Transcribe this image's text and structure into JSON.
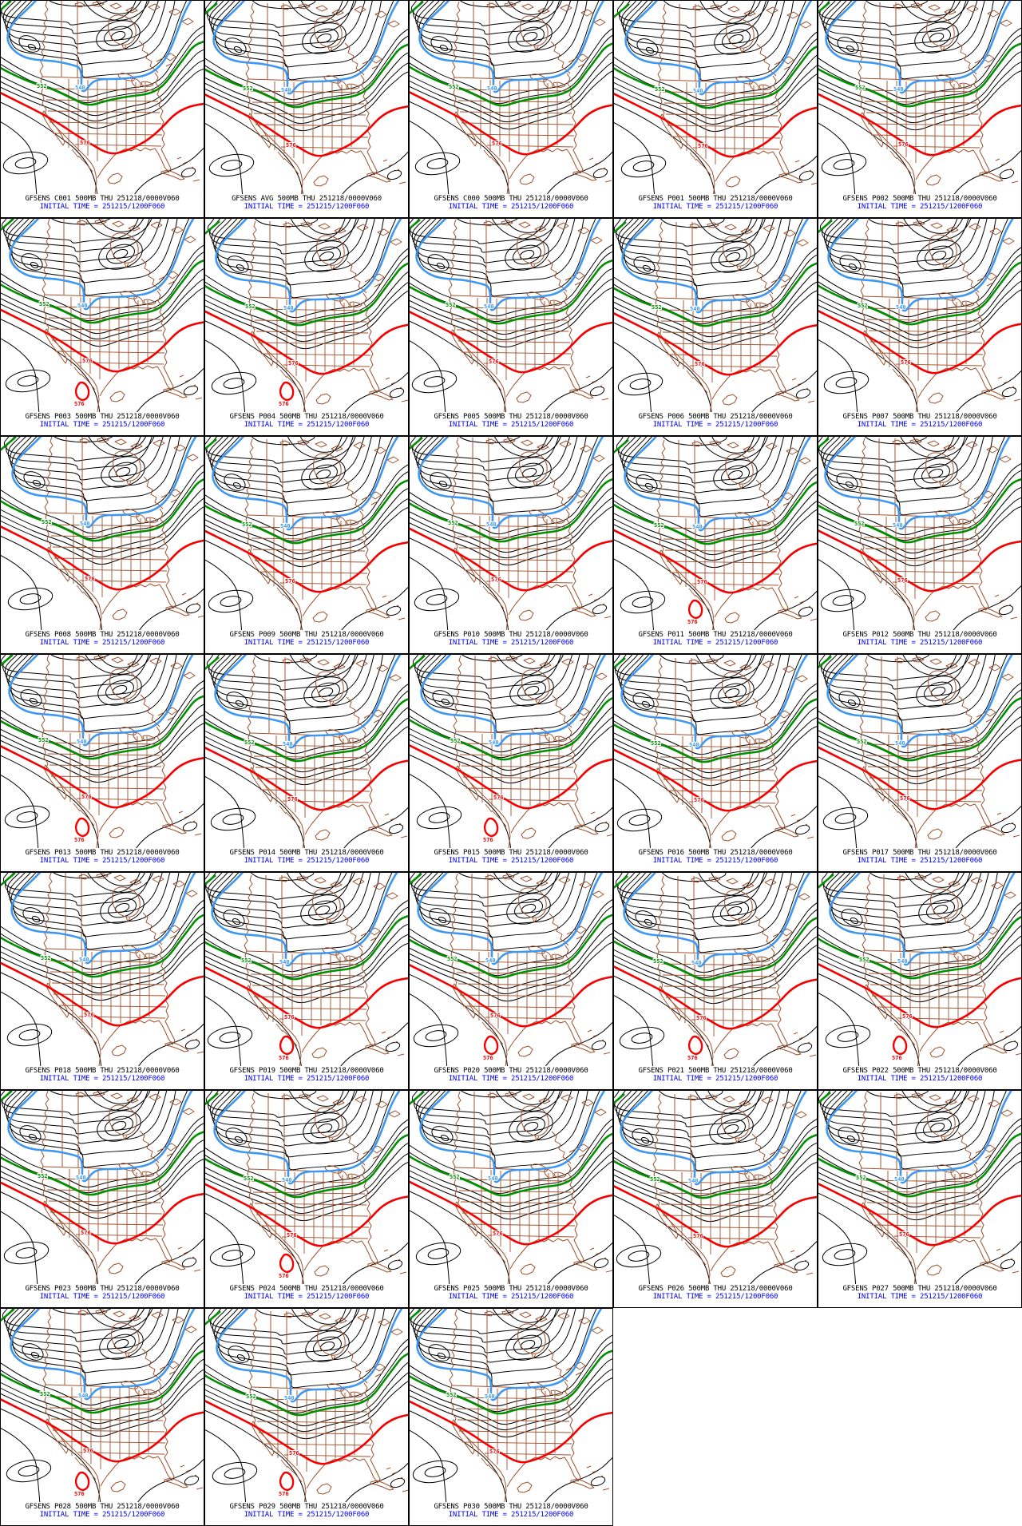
{
  "page": {
    "description": "GFS ensemble 500MB geopotential height forecast panels, 33 members",
    "background": "#ffffff",
    "grid": {
      "columns": 5,
      "rows": 7,
      "panel_count": 33
    }
  },
  "colors": {
    "contour_black": "#000000",
    "geography_brown": "#a0522d",
    "contour_540_blue": "#3e97f0",
    "contour_552_green": "#009000",
    "contour_576_red": "#f50000",
    "caption_black": "#000000",
    "caption_blue": "#0000ee"
  },
  "map": {
    "labels": {
      "h540": "540",
      "h552": "552",
      "h576": "576"
    }
  },
  "panels": [
    {
      "id": "C001",
      "title": "GFSENS C001 500MB THU 251218/0000V060",
      "initial_time": "INITIAL TIME = 251215/1200F060",
      "mexico_low": false
    },
    {
      "id": "AVG",
      "title": "GFSENS AVG 500MB THU 251218/0000V060",
      "initial_time": "INITIAL TIME = 251215/1200F060",
      "mexico_low": false
    },
    {
      "id": "C000",
      "title": "GFSENS C000 500MB THU 251218/0000V060",
      "initial_time": "INITIAL TIME = 251215/1200F060",
      "mexico_low": false
    },
    {
      "id": "P001",
      "title": "GFSENS P001 500MB THU 251218/0000V060",
      "initial_time": "INITIAL TIME = 251215/1200F060",
      "mexico_low": false
    },
    {
      "id": "P002",
      "title": "GFSENS P002 500MB THU 251218/0000V060",
      "initial_time": "INITIAL TIME = 251215/1200F060",
      "mexico_low": false
    },
    {
      "id": "P003",
      "title": "GFSENS P003 500MB THU 251218/0000V060",
      "initial_time": "INITIAL TIME = 251215/1200F060",
      "mexico_low": true
    },
    {
      "id": "P004",
      "title": "GFSENS P004 500MB THU 251218/0000V060",
      "initial_time": "INITIAL TIME = 251215/1200F060",
      "mexico_low": true
    },
    {
      "id": "P005",
      "title": "GFSENS P005 500MB THU 251218/0000V060",
      "initial_time": "INITIAL TIME = 251215/1200F060",
      "mexico_low": false
    },
    {
      "id": "P006",
      "title": "GFSENS P006 500MB THU 251218/0000V060",
      "initial_time": "INITIAL TIME = 251215/1200F060",
      "mexico_low": false
    },
    {
      "id": "P007",
      "title": "GFSENS P007 500MB THU 251218/0000V060",
      "initial_time": "INITIAL TIME = 251215/1200F060",
      "mexico_low": false
    },
    {
      "id": "P008",
      "title": "GFSENS P008 500MB THU 251218/0000V060",
      "initial_time": "INITIAL TIME = 251215/1200F060",
      "mexico_low": false
    },
    {
      "id": "P009",
      "title": "GFSENS P009 500MB THU 251218/0000V060",
      "initial_time": "INITIAL TIME = 251215/1200F060",
      "mexico_low": false
    },
    {
      "id": "P010",
      "title": "GFSENS P010 500MB THU 251218/0000V060",
      "initial_time": "INITIAL TIME = 251215/1200F060",
      "mexico_low": false
    },
    {
      "id": "P011",
      "title": "GFSENS P011 500MB THU 251218/0000V060",
      "initial_time": "INITIAL TIME = 251215/1200F060",
      "mexico_low": true
    },
    {
      "id": "P012",
      "title": "GFSENS P012 500MB THU 251218/0000V060",
      "initial_time": "INITIAL TIME = 251215/1200F060",
      "mexico_low": false
    },
    {
      "id": "P013",
      "title": "GFSENS P013 500MB THU 251218/0000V060",
      "initial_time": "INITIAL TIME = 251215/1200F060",
      "mexico_low": true
    },
    {
      "id": "P014",
      "title": "GFSENS P014 500MB THU 251218/0000V060",
      "initial_time": "INITIAL TIME = 251215/1200F060",
      "mexico_low": false
    },
    {
      "id": "P015",
      "title": "GFSENS P015 500MB THU 251218/0000V060",
      "initial_time": "INITIAL TIME = 251215/1200F060",
      "mexico_low": true
    },
    {
      "id": "P016",
      "title": "GFSENS P016 500MB THU 251218/0000V060",
      "initial_time": "INITIAL TIME = 251215/1200F060",
      "mexico_low": false
    },
    {
      "id": "P017",
      "title": "GFSENS P017 500MB THU 251218/0000V060",
      "initial_time": "INITIAL TIME = 251215/1200F060",
      "mexico_low": false
    },
    {
      "id": "P018",
      "title": "GFSENS P018 500MB THU 251218/0000V060",
      "initial_time": "INITIAL TIME = 251215/1200F060",
      "mexico_low": false
    },
    {
      "id": "P019",
      "title": "GFSENS P019 500MB THU 251218/0000V060",
      "initial_time": "INITIAL TIME = 251215/1200F060",
      "mexico_low": true
    },
    {
      "id": "P020",
      "title": "GFSENS P020 500MB THU 251218/0000V060",
      "initial_time": "INITIAL TIME = 251215/1200F060",
      "mexico_low": true
    },
    {
      "id": "P021",
      "title": "GFSENS P021 500MB THU 251218/0000V060",
      "initial_time": "INITIAL TIME = 251215/1200F060",
      "mexico_low": true
    },
    {
      "id": "P022",
      "title": "GFSENS P022 500MB THU 251218/0000V060",
      "initial_time": "INITIAL TIME = 251215/1200F060",
      "mexico_low": true
    },
    {
      "id": "P023",
      "title": "GFSENS P023 500MB THU 251218/0000V060",
      "initial_time": "INITIAL TIME = 251215/1200F060",
      "mexico_low": false
    },
    {
      "id": "P024",
      "title": "GFSENS P024 500MB THU 251218/0000V060",
      "initial_time": "INITIAL TIME = 251215/1200F060",
      "mexico_low": true
    },
    {
      "id": "P025",
      "title": "GFSENS P025 500MB THU 251218/0000V060",
      "initial_time": "INITIAL TIME = 251215/1200F060",
      "mexico_low": false
    },
    {
      "id": "P026",
      "title": "GFSENS P026 500MB THU 251218/0000V060",
      "initial_time": "INITIAL TIME = 251215/1200F060",
      "mexico_low": false
    },
    {
      "id": "P027",
      "title": "GFSENS P027 500MB THU 251218/0000V060",
      "initial_time": "INITIAL TIME = 251215/1200F060",
      "mexico_low": false
    },
    {
      "id": "P028",
      "title": "GFSENS P028 500MB THU 251218/0000V060",
      "initial_time": "INITIAL TIME = 251215/1200F060",
      "mexico_low": true
    },
    {
      "id": "P029",
      "title": "GFSENS P029 500MB THU 251218/0000V060",
      "initial_time": "INITIAL TIME = 251215/1200F060",
      "mexico_low": true
    },
    {
      "id": "P030",
      "title": "GFSENS P030 500MB THU 251218/0000V060",
      "initial_time": "INITIAL TIME = 251215/1200F060",
      "mexico_low": false
    }
  ]
}
